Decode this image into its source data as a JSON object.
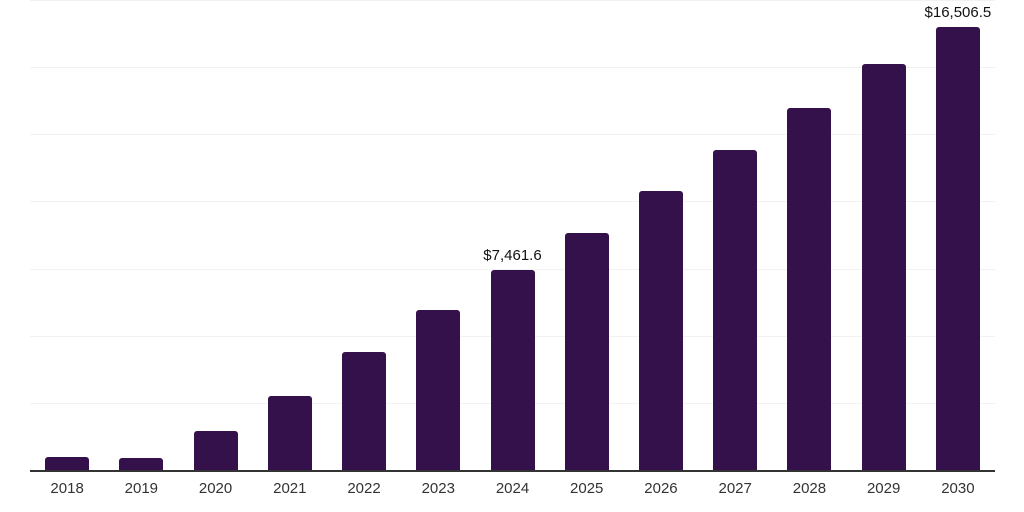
{
  "chart_data": {
    "type": "bar",
    "title": "",
    "xlabel": "",
    "ylabel": "",
    "categories": [
      "2018",
      "2019",
      "2020",
      "2021",
      "2022",
      "2023",
      "2024",
      "2025",
      "2026",
      "2027",
      "2028",
      "2029",
      "2030"
    ],
    "values": [
      485,
      460,
      1450,
      2760,
      4380,
      5950,
      7461.6,
      8840,
      10380,
      11900,
      13470,
      15110,
      16506.5
    ],
    "ylim": [
      0,
      17500
    ],
    "gridline_step": 2500,
    "grid": "horizontal",
    "legend": "none",
    "data_labels": [
      {
        "index": 6,
        "text": "$7,461.6"
      },
      {
        "index": 12,
        "text": "$16,506.5"
      }
    ]
  },
  "colors": {
    "bar": "#35114B",
    "grid": "#f2f2f2",
    "axis": "#333333",
    "data_label_text": "#111111",
    "tick_text": "#333333",
    "background": "#ffffff"
  }
}
